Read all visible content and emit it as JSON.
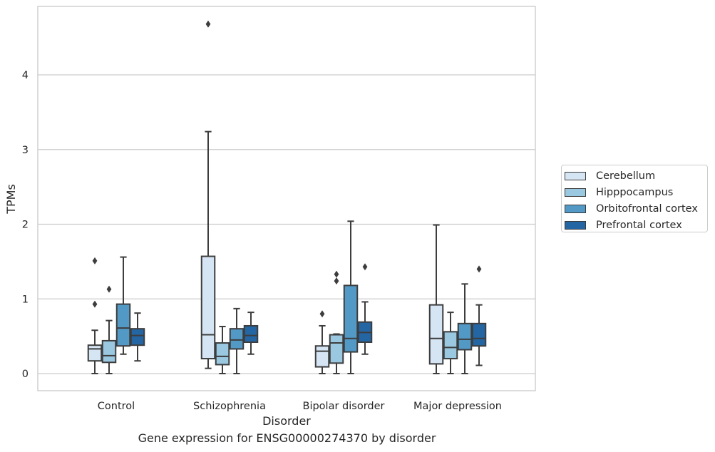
{
  "caption": "Gene expression for ENSG00000274370 by disorder",
  "chart_data": {
    "type": "box",
    "title": "",
    "xlabel": "Disorder",
    "ylabel": "TPMs",
    "ylim": [
      -0.23,
      4.9
    ],
    "yticks": [
      0,
      1,
      2,
      3,
      4
    ],
    "grid": "horizontal",
    "legend_position": "right",
    "categories": [
      "Control",
      "Schizophrenia",
      "Bipolar disorder",
      "Major depression"
    ],
    "series": [
      {
        "name": "Cerebellum",
        "color": "#d6e5f4",
        "boxes": [
          {
            "whisker_low": 0.0,
            "q1": 0.17,
            "median": 0.33,
            "q3": 0.38,
            "whisker_high": 0.58,
            "outliers": [
              0.93,
              1.51
            ]
          },
          {
            "whisker_low": 0.07,
            "q1": 0.2,
            "median": 0.52,
            "q3": 1.57,
            "whisker_high": 3.24,
            "outliers": [
              4.68
            ]
          },
          {
            "whisker_low": 0.0,
            "q1": 0.09,
            "median": 0.3,
            "q3": 0.37,
            "whisker_high": 0.64,
            "outliers": [
              0.8
            ]
          },
          {
            "whisker_low": 0.0,
            "q1": 0.13,
            "median": 0.47,
            "q3": 0.92,
            "whisker_high": 1.99,
            "outliers": []
          }
        ]
      },
      {
        "name": "Hipppocampus",
        "color": "#9ac8e0",
        "boxes": [
          {
            "whisker_low": 0.0,
            "q1": 0.15,
            "median": 0.24,
            "q3": 0.44,
            "whisker_high": 0.71,
            "outliers": [
              1.13
            ]
          },
          {
            "whisker_low": 0.0,
            "q1": 0.12,
            "median": 0.23,
            "q3": 0.41,
            "whisker_high": 0.63,
            "outliers": []
          },
          {
            "whisker_low": 0.0,
            "q1": 0.14,
            "median": 0.41,
            "q3": 0.52,
            "whisker_high": 0.53,
            "outliers": [
              1.24,
              1.33
            ]
          },
          {
            "whisker_low": 0.0,
            "q1": 0.2,
            "median": 0.35,
            "q3": 0.56,
            "whisker_high": 0.82,
            "outliers": []
          }
        ]
      },
      {
        "name": "Orbitofrontal cortex",
        "color": "#5399c6",
        "boxes": [
          {
            "whisker_low": 0.26,
            "q1": 0.37,
            "median": 0.61,
            "q3": 0.93,
            "whisker_high": 1.56,
            "outliers": []
          },
          {
            "whisker_low": 0.0,
            "q1": 0.33,
            "median": 0.45,
            "q3": 0.6,
            "whisker_high": 0.87,
            "outliers": []
          },
          {
            "whisker_low": 0.0,
            "q1": 0.29,
            "median": 0.47,
            "q3": 1.18,
            "whisker_high": 2.04,
            "outliers": []
          },
          {
            "whisker_low": 0.0,
            "q1": 0.32,
            "median": 0.46,
            "q3": 0.67,
            "whisker_high": 1.2,
            "outliers": []
          }
        ]
      },
      {
        "name": "Prefrontal cortex",
        "color": "#2466a4",
        "boxes": [
          {
            "whisker_low": 0.17,
            "q1": 0.38,
            "median": 0.51,
            "q3": 0.6,
            "whisker_high": 0.81,
            "outliers": []
          },
          {
            "whisker_low": 0.26,
            "q1": 0.42,
            "median": 0.51,
            "q3": 0.64,
            "whisker_high": 0.82,
            "outliers": []
          },
          {
            "whisker_low": 0.26,
            "q1": 0.42,
            "median": 0.55,
            "q3": 0.69,
            "whisker_high": 0.96,
            "outliers": [
              1.43
            ]
          },
          {
            "whisker_low": 0.11,
            "q1": 0.37,
            "median": 0.47,
            "q3": 0.67,
            "whisker_high": 0.92,
            "outliers": [
              1.4
            ]
          }
        ]
      }
    ]
  }
}
